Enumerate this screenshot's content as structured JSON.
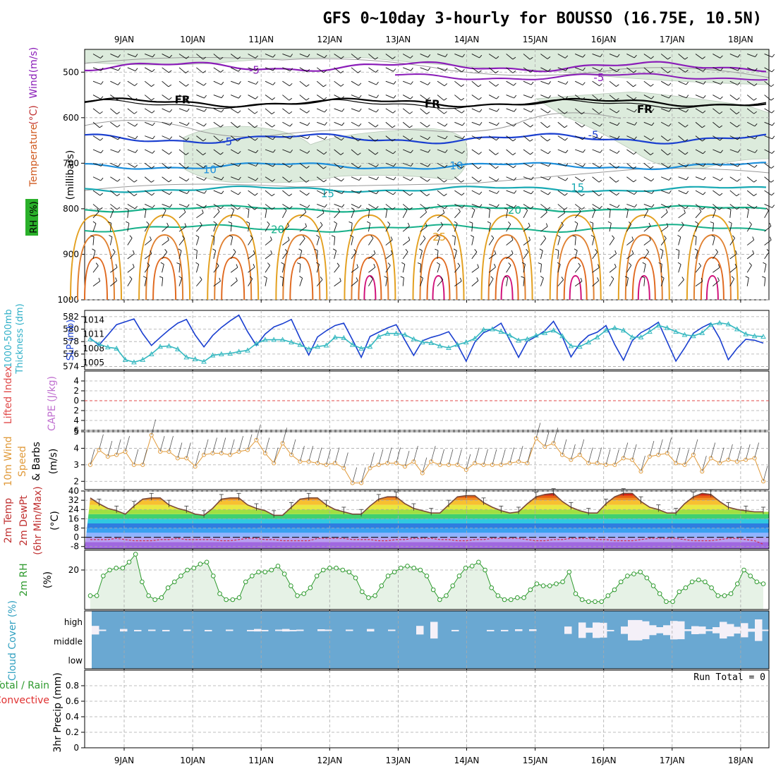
{
  "chart_data": [
    {
      "type": "line",
      "title": "GFS 0~10day 3-hourly for BOUSSO (16.75E, 10.5N)",
      "panel": "upper-air",
      "ylabel_parts": [
        "RH (%)",
        "Temperature",
        "(°C)",
        "Wind",
        "(m/s)"
      ],
      "ylabel_units": "(millibars)",
      "yticks": [
        500,
        600,
        700,
        800,
        900,
        1000
      ],
      "ylim": [
        1000,
        450
      ],
      "day_labels": [
        "9JAN",
        "10JAN",
        "11JAN",
        "12JAN",
        "13JAN",
        "14JAN",
        "15JAN",
        "16JAN",
        "17JAN",
        "18JAN"
      ],
      "xlim": [
        -0.5,
        9.25
      ],
      "isotherm_labels": [
        {
          "text": "-5",
          "x": 1.9,
          "p": 496,
          "color": "#8a1cb8"
        },
        {
          "text": "-5",
          "x": 6.93,
          "p": 512,
          "color": "#8a1cb8"
        },
        {
          "text": "FR",
          "x": 0.85,
          "p": 561,
          "color": "#000000"
        },
        {
          "text": "FR",
          "x": 4.5,
          "p": 570,
          "color": "#000000"
        },
        {
          "text": "FR",
          "x": 7.6,
          "p": 582,
          "color": "#000000"
        },
        {
          "text": "-5",
          "x": 1.5,
          "p": 653,
          "color": "#1a3fd0"
        },
        {
          "text": "-5",
          "x": 6.85,
          "p": 638,
          "color": "#1a3fd0"
        },
        {
          "text": "10",
          "x": 1.25,
          "p": 714,
          "color": "#1d8fdc"
        },
        {
          "text": "10",
          "x": 4.85,
          "p": 706,
          "color": "#1d8fdc"
        },
        {
          "text": "15",
          "x": 2.97,
          "p": 767,
          "color": "#18a9b3"
        },
        {
          "text": "15",
          "x": 6.62,
          "p": 754,
          "color": "#18a9b3"
        },
        {
          "text": "20",
          "x": 5.7,
          "p": 803,
          "color": "#17b08a"
        },
        {
          "text": "20",
          "x": 2.24,
          "p": 846,
          "color": "#17b08a"
        },
        {
          "text": "25",
          "x": 4.6,
          "p": 862,
          "color": "#e3a020"
        }
      ]
    },
    {
      "type": "line",
      "panel": "thickness-slp",
      "ylabel_left": [
        "1000-500mb",
        "Thickness (dm)"
      ],
      "ylabel_right": "SLP (mb)",
      "yticks_left": [
        574,
        576,
        578,
        580,
        582
      ],
      "yticks_right": [
        1005,
        1008,
        1011,
        1014
      ],
      "series": [
        {
          "name": "SLP (mb)",
          "color": "#1a3fd0",
          "values": [
            1010.1,
            1008.7,
            1010.8,
            1013.0,
            1013.6,
            1014.2,
            1011.1,
            1008.6,
            1010.3,
            1011.9,
            1013.3,
            1014.1,
            1010.8,
            1008.3,
            1010.7,
            1012.4,
            1013.8,
            1015.0,
            1011.5,
            1008.6,
            1011.0,
            1012.5,
            1013.2,
            1014.1,
            1010.1,
            1006.6,
            1010.4,
            1011.7,
            1012.8,
            1013.3,
            1009.8,
            1006.1,
            1010.5,
            1011.4,
            1012.3,
            1013.0,
            1009.7,
            1006.5,
            1009.6,
            1010.3,
            1010.8,
            1011.5,
            1008.8,
            1005.3,
            1009.3,
            1011.3,
            1012.1,
            1013.3,
            1009.7,
            1006.1,
            1009.5,
            1010.5,
            1011.7,
            1013.7,
            1010.5,
            1006.2,
            1009.0,
            1010.7,
            1011.4,
            1012.8,
            1008.8,
            1005.5,
            1009.6,
            1011.3,
            1012.3,
            1013.5,
            1009.4,
            1005.3,
            1008.1,
            1011.2,
            1012.4,
            1013.3,
            1010.1,
            1005.6,
            1008.0,
            1009.9,
            1009.7,
            1009.1
          ]
        },
        {
          "name": "1000-500mb Thickness (dm)",
          "color": "#35b8c0",
          "values": [
            578.4,
            577.6,
            577.1,
            576.9,
            575.1,
            574.7,
            575.1,
            576.0,
            577.2,
            577.3,
            576.8,
            575.5,
            575.2,
            574.8,
            575.8,
            576.0,
            576.1,
            576.4,
            576.6,
            577.7,
            578.3,
            578.3,
            578.3,
            577.9,
            577.5,
            576.8,
            577.2,
            577.4,
            578.7,
            578.6,
            577.5,
            576.9,
            577.2,
            578.8,
            579.3,
            579.3,
            579.1,
            578.4,
            577.9,
            577.8,
            577.3,
            577.0,
            577.5,
            577.9,
            578.5,
            579.9,
            580.0,
            579.6,
            579.0,
            578.2,
            578.4,
            579.0,
            579.4,
            579.8,
            578.9,
            577.3,
            577.2,
            577.9,
            578.7,
            579.8,
            580.2,
            579.8,
            578.7,
            578.7,
            579.6,
            580.6,
            580.2,
            579.6,
            579.1,
            578.9,
            579.4,
            580.7,
            581.0,
            580.8,
            580.0,
            579.2,
            578.9,
            578.8
          ]
        }
      ]
    },
    {
      "type": "line",
      "panel": "instability",
      "ylabel_left": "Lifted Index",
      "ylabel_right": "CAPE (J/kg)",
      "yticks": [
        -4,
        -2,
        0,
        2,
        4,
        6
      ],
      "tick_labels": [
        "4",
        "2",
        "0",
        "2",
        "4",
        "6"
      ],
      "series": [
        {
          "name": "Lifted Index zero line",
          "color": "#e04a4a",
          "values": [
            0,
            0
          ]
        }
      ]
    },
    {
      "type": "line",
      "panel": "10m-wind",
      "ylabel_parts": [
        "10m Wind",
        "Speed",
        "& Barbs",
        "(m/s)"
      ],
      "yticks": [
        2,
        3,
        4,
        5
      ],
      "ylim": [
        1.5,
        5.0
      ],
      "series": [
        {
          "name": "10m Wind Speed",
          "color": "#e09a3a",
          "values": [
            3.0,
            3.9,
            3.5,
            3.6,
            3.8,
            3.0,
            3.0,
            4.8,
            3.8,
            3.8,
            3.4,
            3.4,
            2.9,
            3.6,
            3.7,
            3.7,
            3.6,
            3.8,
            3.9,
            4.5,
            3.7,
            3.1,
            4.3,
            3.6,
            3.2,
            3.2,
            3.1,
            3.0,
            3.1,
            2.8,
            1.9,
            1.9,
            2.8,
            3.0,
            3.1,
            3.1,
            2.9,
            3.2,
            2.5,
            3.2,
            3.0,
            3.0,
            3.0,
            2.7,
            3.1,
            3.0,
            3.0,
            3.0,
            3.1,
            3.2,
            3.1,
            4.6,
            4.1,
            4.3,
            3.6,
            3.3,
            3.6,
            3.1,
            3.1,
            3.0,
            3.0,
            3.4,
            3.3,
            2.6,
            3.5,
            3.6,
            3.7,
            3.1,
            3.0,
            3.6,
            2.6,
            3.4,
            3.1,
            3.3,
            3.2,
            3.3,
            3.4,
            2.0
          ]
        }
      ]
    },
    {
      "type": "area",
      "panel": "2m-temp",
      "ylabel_parts": [
        "2m Temp",
        "2m DewPt",
        "(6hr Min/Max)",
        "(°C)"
      ],
      "yticks": [
        -8,
        0,
        8,
        16,
        24,
        32,
        40
      ],
      "tick_labels": [
        "-8",
        "0",
        "8",
        "16",
        "24",
        "32",
        "40"
      ],
      "ylim": [
        -10,
        40
      ],
      "band_colors": [
        "#a068e0",
        "#b8a0f0",
        "#90b4ff",
        "#3aa0f0",
        "#2f7de0",
        "#30c8e0",
        "#40d070",
        "#a0e040",
        "#e8e840",
        "#f8c030",
        "#f09020",
        "#e86010",
        "#d82010",
        "#b00010"
      ],
      "series": [
        {
          "name": "2m Temp",
          "color": "#7a4a3a",
          "values": [
            34,
            29,
            25,
            23,
            20,
            27,
            33,
            34,
            34,
            28,
            25,
            23,
            20,
            19,
            25,
            33,
            34,
            34,
            28,
            25,
            23,
            19,
            19,
            26,
            33,
            34,
            34,
            28,
            24,
            22,
            20,
            20,
            27,
            33,
            35,
            35,
            29,
            25,
            23,
            21,
            21,
            28,
            35,
            36,
            36,
            30,
            26,
            23,
            21,
            22,
            29,
            35,
            37,
            38,
            31,
            26,
            23,
            21,
            21,
            29,
            35,
            38,
            38,
            31,
            26,
            24,
            21,
            21,
            29,
            35,
            38,
            37,
            31,
            26,
            24,
            23,
            22,
            22
          ]
        },
        {
          "name": "2m DewPt",
          "color": "#d03050",
          "values": [
            -2,
            -2,
            -2,
            -1,
            -2,
            -3,
            -3,
            -3,
            -2,
            -2,
            -1,
            -2,
            -2,
            -2,
            -2,
            -3,
            -3,
            -2,
            -1,
            -1,
            -2,
            -2,
            -3,
            -3,
            -3,
            -3,
            -1,
            -1,
            -1,
            -1,
            -2,
            -2,
            -2,
            -3,
            -3,
            -2,
            -2,
            -1,
            -1,
            -1,
            -2,
            -2,
            -3,
            -3,
            -2,
            -2,
            -1,
            -1,
            -1,
            -1,
            -2,
            -3,
            -3,
            -2,
            -2,
            -1,
            -1,
            -1,
            -2,
            -2,
            -3,
            -3,
            -3,
            -2,
            -1,
            -1,
            -1,
            -1,
            -2,
            -3,
            -3,
            -3,
            -2,
            -1,
            -1,
            -2,
            -3,
            -6
          ]
        }
      ]
    },
    {
      "type": "area",
      "panel": "2m-rh",
      "ylabel_parts": [
        "2m RH",
        "(%)"
      ],
      "yticks": [
        20
      ],
      "ylim": [
        0,
        30
      ],
      "series": [
        {
          "name": "2m RH",
          "color": "#2e9a2e",
          "values": [
            7,
            7,
            17,
            20,
            21,
            21,
            24,
            28,
            14,
            7,
            5,
            6,
            11,
            14,
            17,
            20,
            21,
            23,
            24,
            17,
            8,
            5,
            5,
            6,
            14,
            17,
            19,
            19,
            20,
            22,
            18,
            12,
            7,
            8,
            11,
            17,
            20,
            21,
            21,
            20,
            19,
            16,
            9,
            6,
            7,
            12,
            17,
            19,
            21,
            22,
            21,
            20,
            17,
            10,
            5,
            7,
            12,
            17,
            21,
            22,
            24,
            20,
            11,
            7,
            5,
            5,
            6,
            6,
            10,
            13,
            12,
            12,
            13,
            14,
            19,
            8,
            5,
            4,
            4,
            4,
            7,
            10,
            14,
            17,
            18,
            19,
            16,
            12,
            8,
            4,
            4,
            9,
            11,
            14,
            15,
            14,
            11,
            7,
            7,
            8,
            13,
            20,
            17,
            14,
            13
          ]
        }
      ]
    },
    {
      "type": "bar",
      "panel": "cloud-cover",
      "ylabel": "Cloud Cover (%)",
      "levels": [
        "high",
        "middle",
        "low"
      ],
      "colors": {
        "sky": "#6aa8d2",
        "cloud": "#f4f0f8"
      },
      "high_fraction": [
        0.14,
        0.02,
        0,
        0,
        0.04,
        0,
        0.01,
        0,
        0.02,
        0,
        0.01,
        0,
        0,
        0.02,
        0,
        0,
        0.01,
        0,
        0,
        0.02,
        0,
        0,
        0.01,
        0.04,
        0.01,
        0,
        0.02,
        0.04,
        0.01,
        0.02,
        0,
        0,
        0.03,
        0.02,
        0,
        0,
        0.02,
        0,
        0,
        0.04,
        0,
        0,
        0.02,
        0,
        0,
        0,
        0.14,
        0,
        0.27,
        0,
        0,
        0.01,
        0,
        0,
        0,
        0,
        0.01,
        0,
        0.01,
        0,
        0.03,
        0,
        0.03,
        0,
        0,
        0,
        0,
        0.12,
        0,
        0.25,
        0.08,
        0.25,
        0.24,
        0.01,
        0,
        0.12,
        0.33,
        0.33,
        0.29,
        0.16,
        0.1,
        0.16,
        0.3,
        0.29,
        0.03,
        0.13,
        0.12,
        0.03,
        0.1,
        0.27,
        0.2,
        0.11,
        0.23,
        0.05,
        0.35,
        0.02
      ]
    },
    {
      "type": "bar",
      "panel": "precip",
      "ylabel_parts": [
        "Total / Rain",
        "Convective",
        "3hr Precip (mm)"
      ],
      "run_total": "Run Total = 0",
      "yticks": [
        0,
        0.2,
        0.4,
        0.6,
        0.8
      ],
      "tick_labels": [
        "0",
        "0.2",
        "0.4",
        "0.6",
        "0.8"
      ],
      "ylim": [
        0,
        1
      ],
      "series": [
        {
          "name": "Total / Rain",
          "color": "#2e9a2e",
          "values": [
            0,
            0,
            0,
            0,
            0,
            0,
            0,
            0,
            0,
            0
          ]
        },
        {
          "name": "Convective",
          "color": "#e03030",
          "values": [
            0,
            0,
            0,
            0,
            0,
            0,
            0,
            0,
            0,
            0
          ]
        }
      ]
    }
  ]
}
